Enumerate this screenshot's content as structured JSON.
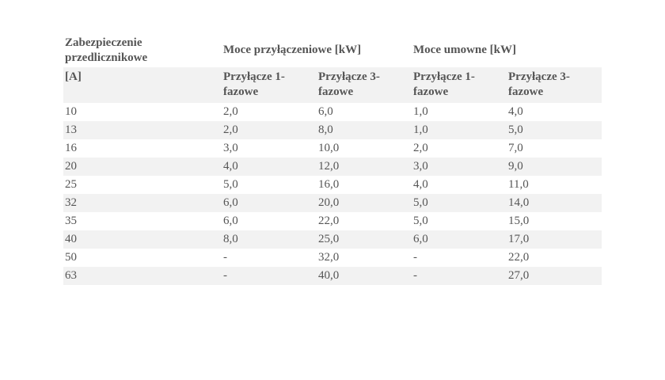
{
  "table": {
    "header": {
      "group_row": [
        "Zabezpieczenie przedlicznikowe",
        "Moce przyłączeniowe [kW]",
        "Moce umowne [kW]"
      ],
      "sub_row": [
        "[A]",
        "Przyłącze 1-fazowe",
        "Przyłącze 3-fazowe",
        "Przyłącze 1-fazowe",
        "Przyłącze 3-fazowe"
      ]
    },
    "rows": [
      [
        "10",
        "2,0",
        "6,0",
        "1,0",
        "4,0"
      ],
      [
        "13",
        "2,0",
        "8,0",
        "1,0",
        "5,0"
      ],
      [
        "16",
        "3,0",
        "10,0",
        "2,0",
        "7,0"
      ],
      [
        "20",
        "4,0",
        "12,0",
        "3,0",
        "9,0"
      ],
      [
        "25",
        "5,0",
        "16,0",
        "4,0",
        "11,0"
      ],
      [
        "32",
        "6,0",
        "20,0",
        "5,0",
        "14,0"
      ],
      [
        "35",
        "6,0",
        "22,0",
        "5,0",
        "15,0"
      ],
      [
        "40",
        "8,0",
        "25,0",
        "6,0",
        "17,0"
      ],
      [
        "50",
        "-",
        "32,0",
        "-",
        "22,0"
      ],
      [
        "63",
        "-",
        "40,0",
        "-",
        "27,0"
      ]
    ]
  }
}
